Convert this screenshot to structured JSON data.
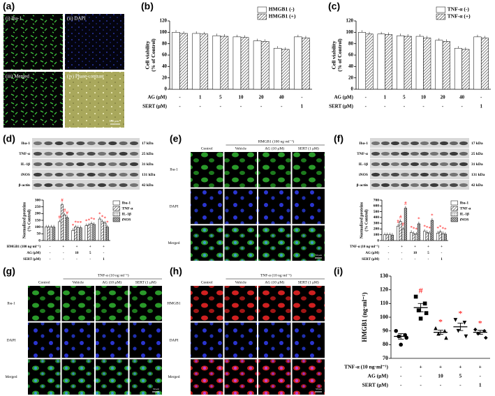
{
  "figure": {
    "a": {
      "label": "(a)",
      "tiles": [
        "(i) Iba-1",
        "(ii) DAPI",
        "(iii) Merged",
        "(iv) Phase-contrast"
      ],
      "scale_bar": "100 μm"
    },
    "e": {
      "label": "(e)",
      "treatment": "HMGB1 (100 ng·ml⁻¹)",
      "columns": [
        "Control",
        "Vehicle",
        "AG (10 μM)",
        "SERT (1 μM)"
      ],
      "rows": [
        "Iba-1",
        "DAPI",
        "Merged"
      ],
      "scale_bar": "50 μm"
    },
    "g": {
      "label": "(g)",
      "treatment": "TNF-α (10 ng·ml⁻¹)",
      "columns": [
        "Control",
        "Vehicle",
        "AG (10 μM)",
        "SERT (1 μM)"
      ],
      "rows": [
        "Iba-1",
        "DAPI",
        "Merged"
      ],
      "scale_bar": "50 μm"
    },
    "h": {
      "label": "(h)",
      "treatment": "TNF-α (10 ng·ml⁻¹)",
      "columns": [
        "Control",
        "Vehicle",
        "AG (10 μM)",
        "SERT (1 μM)"
      ],
      "rows": [
        "HMGB1",
        "DAPI",
        "Merged"
      ],
      "scale_bar": "50 μm"
    }
  },
  "chart_data": [
    {
      "type": "bar",
      "label": "(b)",
      "ylabel": [
        "Cell viability",
        "(% of Control)"
      ],
      "ylim": [
        0,
        120
      ],
      "yticks": [
        0,
        20,
        40,
        60,
        80,
        100,
        120
      ],
      "legend": "top-right",
      "series": [
        {
          "name": "HMGB1 (-)",
          "color": "#ffffff",
          "values": [
            100,
            98,
            94,
            92,
            85,
            72,
            92
          ]
        },
        {
          "name": "HMGB1 (+)",
          "color": "#ffffff",
          "pattern": "hatch",
          "values": [
            98,
            97,
            93,
            91,
            84,
            70,
            90
          ]
        }
      ],
      "conditions": [
        {
          "label": "AG (μM)",
          "values": [
            "-",
            "1",
            "5",
            "10",
            "20",
            "40",
            "-"
          ]
        },
        {
          "label": "SERT (μM)",
          "values": [
            "-",
            "-",
            "-",
            "-",
            "-",
            "-",
            "1"
          ]
        }
      ]
    },
    {
      "type": "bar",
      "label": "(c)",
      "ylabel": [
        "Cell viability",
        "(% of Control)"
      ],
      "ylim": [
        0,
        120
      ],
      "yticks": [
        0,
        20,
        40,
        60,
        80,
        100,
        120
      ],
      "legend": "top-right",
      "series": [
        {
          "name": "TNF-α (-)",
          "color": "#ffffff",
          "values": [
            100,
            97,
            94,
            93,
            86,
            72,
            92
          ]
        },
        {
          "name": "TNF-α (+)",
          "color": "#ffffff",
          "pattern": "hatch",
          "values": [
            97,
            96,
            93,
            90,
            84,
            70,
            90
          ]
        }
      ],
      "conditions": [
        {
          "label": "AG (μM)",
          "values": [
            "-",
            "1",
            "5",
            "10",
            "20",
            "40",
            "-"
          ]
        },
        {
          "label": "SERT (μM)",
          "values": [
            "-",
            "-",
            "-",
            "-",
            "-",
            "-",
            "1"
          ]
        }
      ]
    },
    {
      "type": "bar",
      "label": "(d)",
      "ylabel": [
        "Normalized proteins",
        "(% Control)"
      ],
      "ylim": [
        0,
        300
      ],
      "yticks": [
        0,
        50,
        100,
        150,
        200,
        250,
        300
      ],
      "legend": "right",
      "significance_color": "#ff0000",
      "blot": {
        "bands": [
          "Iba-1",
          "TNF-α",
          "IL-1β",
          "iNOS",
          "β-actin"
        ],
        "sizes": [
          "17 kDa",
          "25 kDa",
          "31 kDa",
          "131 kDa",
          "42 kDa"
        ]
      },
      "series": [
        {
          "name": "Iba-1",
          "color": "#ffffff",
          "values": [
            100,
            140,
            75,
            110,
            160
          ],
          "significance": [
            null,
            "#",
            "*",
            "*",
            "*"
          ]
        },
        {
          "name": "TNF-α",
          "color": "#ffffff",
          "pattern": "hatch",
          "values": [
            100,
            265,
            100,
            115,
            140
          ],
          "significance": [
            null,
            "#",
            "*",
            "*",
            "*"
          ]
        },
        {
          "name": "IL-1β",
          "color": "#ffffff",
          "pattern": "dots",
          "values": [
            100,
            190,
            95,
            125,
            130
          ],
          "significance": [
            null,
            "#",
            "*",
            "*",
            "*"
          ]
        },
        {
          "name": "iNOS",
          "color": "#ffffff",
          "pattern": "cross",
          "values": [
            100,
            170,
            95,
            120,
            100
          ],
          "significance": [
            null,
            "#",
            "*",
            "*",
            "*"
          ]
        }
      ],
      "conditions": [
        {
          "label": "HMGB1 (100 ng·ml⁻¹)",
          "values": [
            "-",
            "+",
            "+",
            "+",
            "+"
          ]
        },
        {
          "label": "AG (μM)",
          "values": [
            "-",
            "-",
            "10",
            "5",
            "-"
          ]
        },
        {
          "label": "SERT (μM)",
          "values": [
            "-",
            "-",
            "-",
            "-",
            "1"
          ]
        }
      ]
    },
    {
      "type": "bar",
      "label": "(f)",
      "ylabel": [
        "Normalized proteins",
        "(% Control)"
      ],
      "ylim": [
        0,
        700
      ],
      "yticks": [
        0,
        100,
        200,
        300,
        400,
        500,
        600,
        700
      ],
      "legend": "right",
      "significance_color": "#ff0000",
      "blot": {
        "bands": [
          "Iba-1",
          "TNF-α",
          "IL-1β",
          "iNOS",
          "β-actin"
        ],
        "sizes": [
          "17 kDa",
          "25 kDa",
          "31 kDa",
          "131 kDa",
          "42 kDa"
        ]
      },
      "series": [
        {
          "name": "Ibа-1",
          "color": "#ffffff",
          "values": [
            100,
            250,
            140,
            160,
            130
          ],
          "significance": [
            null,
            "#",
            "*",
            "*",
            "*"
          ]
        },
        {
          "name": "TNF-α",
          "color": "#ffffff",
          "pattern": "hatch",
          "values": [
            100,
            330,
            120,
            140,
            150
          ],
          "significance": [
            null,
            "#",
            "*",
            "*",
            "*"
          ]
        },
        {
          "name": "IL-1β",
          "color": "#ffffff",
          "pattern": "dots",
          "values": [
            100,
            200,
            110,
            130,
            120
          ],
          "significance": [
            null,
            "#",
            "*",
            "*",
            "*"
          ]
        },
        {
          "name": "iNOS",
          "color": "#ffffff",
          "pattern": "cross",
          "values": [
            95,
            560,
            290,
            350,
            110
          ],
          "significance": [
            null,
            "#",
            "*",
            "*",
            "*"
          ]
        }
      ],
      "conditions": [
        {
          "label": "TNF-α (10 ng·ml⁻¹)",
          "values": [
            "-",
            "+",
            "+",
            "+",
            "+"
          ]
        },
        {
          "label": "AG (μM)",
          "values": [
            "-",
            "-",
            "10",
            "5",
            "-"
          ]
        },
        {
          "label": "SERT (μM)",
          "values": [
            "-",
            "-",
            "-",
            "-",
            "1"
          ]
        }
      ]
    },
    {
      "type": "scatter",
      "label": "(i)",
      "ylabel": "HMGB1 (ng·ml⁻¹)",
      "ylim": [
        70,
        130
      ],
      "yticks": [
        70,
        80,
        90,
        100,
        110,
        120,
        130
      ],
      "significance_color": "#ff0000",
      "groups": [
        {
          "marker": "circle",
          "values": [
            90,
            87,
            86,
            85,
            80
          ],
          "mean": 86,
          "sem": 2
        },
        {
          "marker": "square",
          "values": [
            115,
            110,
            105,
            103,
            99
          ],
          "mean": 107,
          "sem": 3
        },
        {
          "marker": "triangle-up",
          "values": [
            92,
            90,
            88,
            85
          ],
          "mean": 89,
          "sem": 1.5
        },
        {
          "marker": "triangle-down",
          "values": [
            98,
            96,
            90,
            86
          ],
          "mean": 93,
          "sem": 2.7
        },
        {
          "marker": "diamond",
          "values": [
            91,
            90,
            88,
            85
          ],
          "mean": 89,
          "sem": 1.4
        }
      ],
      "significance": [
        null,
        "#",
        "*",
        "*",
        "*"
      ],
      "conditions": [
        {
          "label": "TNF-α (10 ng·ml⁻¹)",
          "values": [
            "-",
            "+",
            "+",
            "+",
            "+"
          ]
        },
        {
          "label": "AG (μM)",
          "values": [
            "-",
            "-",
            "10",
            "5",
            "-"
          ]
        },
        {
          "label": "SERT (μM)",
          "values": [
            "-",
            "-",
            "-",
            "-",
            "1"
          ]
        }
      ]
    }
  ]
}
